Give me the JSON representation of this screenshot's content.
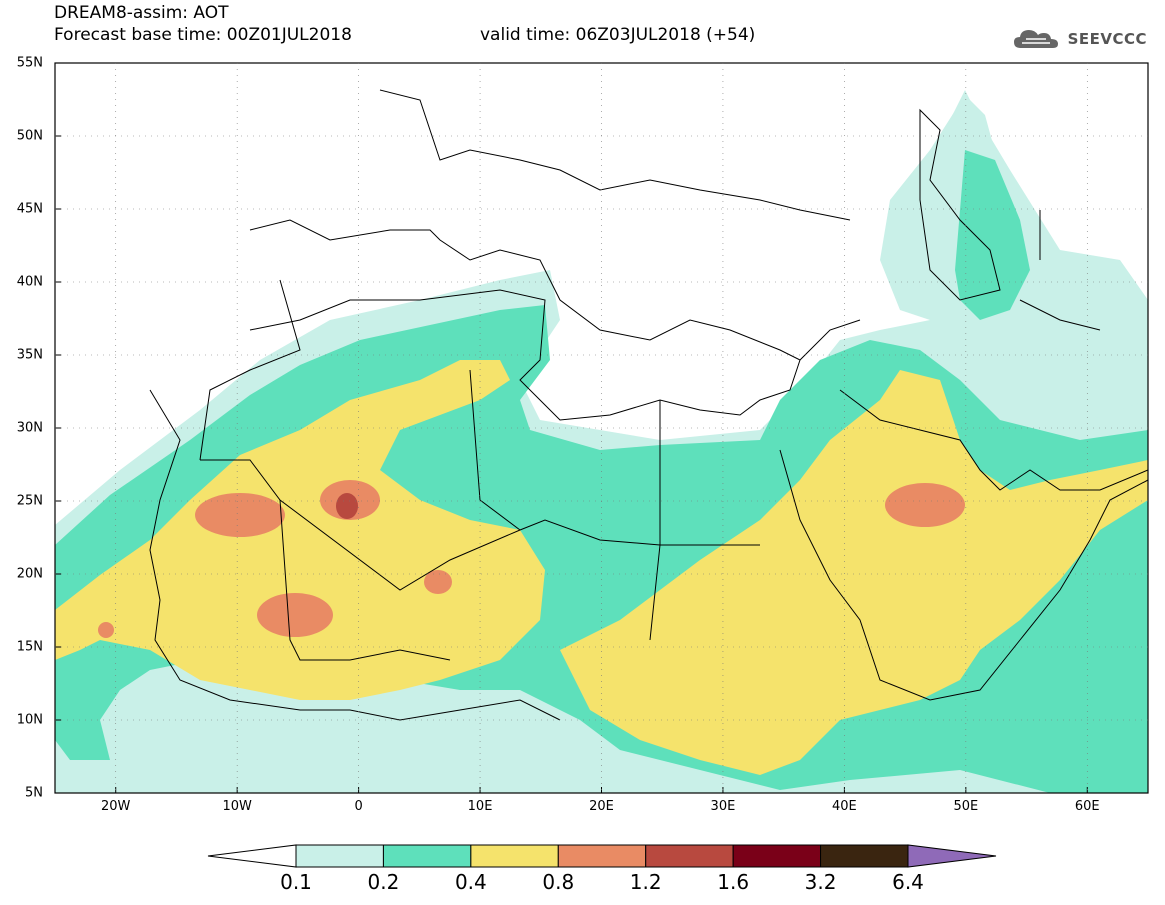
{
  "title": {
    "line1": "DREAM8-assim: AOT",
    "line2_left": "Forecast base time: 00Z01JUL2018",
    "line2_right": "valid time: 06Z03JUL2018 (+54)"
  },
  "logo": {
    "text": "SEEVCCC",
    "icon": "cloud-icon"
  },
  "map": {
    "lat_labels": [
      "55N",
      "50N",
      "45N",
      "40N",
      "35N",
      "30N",
      "25N",
      "20N",
      "15N",
      "10N",
      "5N"
    ],
    "lon_labels": [
      "20W",
      "10W",
      "0",
      "10E",
      "20E",
      "30E",
      "40E",
      "50E",
      "60E"
    ],
    "lat_range": [
      5,
      55
    ],
    "lon_range": [
      -25,
      65
    ]
  },
  "colorbar": {
    "labels": [
      "0.1",
      "0.2",
      "0.4",
      "0.8",
      "1.2",
      "1.6",
      "3.2",
      "6.4"
    ],
    "colors": [
      "#ffffff",
      "#c9f0e8",
      "#5ee0bb",
      "#f5e36c",
      "#e98b64",
      "#b8493f",
      "#7a0018",
      "#3a2510",
      "#8f6ab8"
    ]
  }
}
